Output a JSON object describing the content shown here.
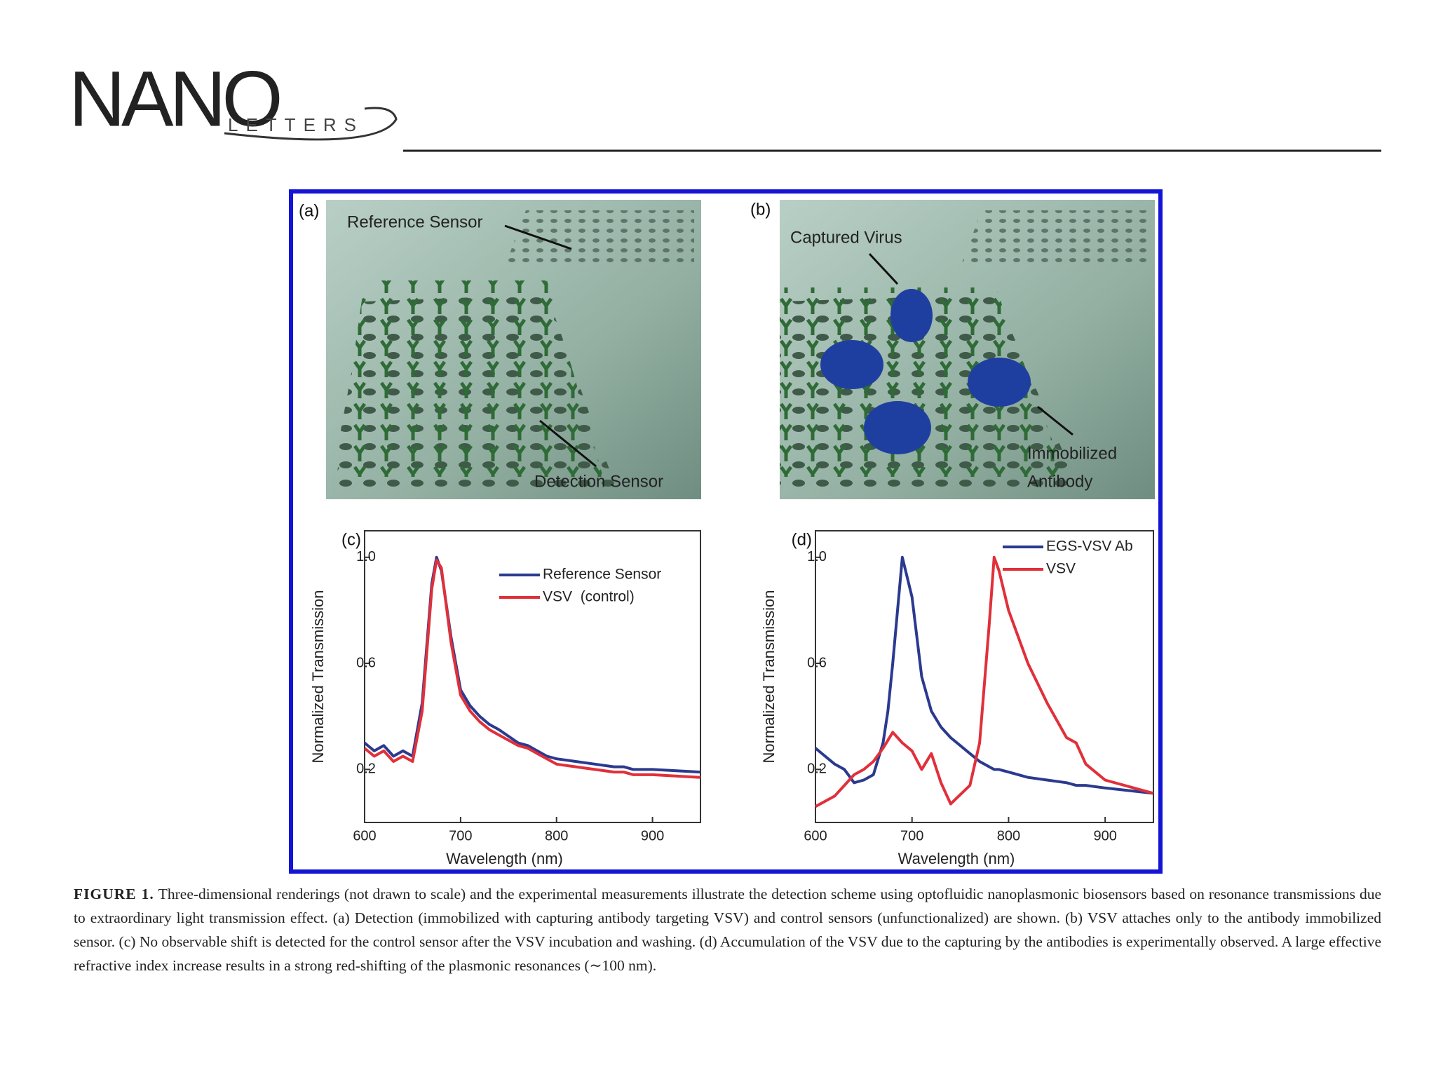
{
  "header": {
    "journal": "NANO",
    "journal_sub": "LETTERS"
  },
  "figure": {
    "panels": [
      {
        "letter": "(a)",
        "labels": [
          "Reference Sensor",
          "Detection Sensor"
        ]
      },
      {
        "letter": "(b)",
        "labels": [
          "Captured Virus",
          "Immobilized",
          "Antibody"
        ]
      }
    ]
  },
  "chart_data": [
    {
      "type": "line",
      "label": "(c)",
      "x_label": "Wavelength (nm)",
      "y_label": "Normalized Transmission",
      "x": [
        600,
        610,
        620,
        630,
        640,
        650,
        660,
        670,
        675,
        680,
        690,
        700,
        710,
        720,
        730,
        740,
        760,
        770,
        780,
        785,
        790,
        800,
        820,
        840,
        860,
        870,
        880,
        900,
        950
      ],
      "series": [
        {
          "name": "Reference Sensor",
          "color": "#2b3a8f",
          "values": [
            0.3,
            0.27,
            0.29,
            0.25,
            0.27,
            0.25,
            0.45,
            0.9,
            1.0,
            0.95,
            0.7,
            0.5,
            0.44,
            0.4,
            0.37,
            0.35,
            0.3,
            0.29,
            0.27,
            0.26,
            0.25,
            0.24,
            0.23,
            0.22,
            0.21,
            0.21,
            0.2,
            0.2,
            0.19
          ]
        },
        {
          "name": "VSV  (control)",
          "color": "#e0303a",
          "values": [
            0.28,
            0.25,
            0.27,
            0.23,
            0.25,
            0.23,
            0.42,
            0.88,
            0.99,
            0.96,
            0.68,
            0.48,
            0.42,
            0.38,
            0.35,
            0.33,
            0.29,
            0.28,
            0.26,
            0.25,
            0.24,
            0.22,
            0.21,
            0.2,
            0.19,
            0.19,
            0.18,
            0.18,
            0.17
          ]
        }
      ],
      "xlim": [
        600,
        950
      ],
      "ylim": [
        0,
        1.1
      ],
      "xticks": [
        600,
        700,
        800,
        900
      ],
      "yticks": [
        0.2,
        0.6,
        {
          "value": 1,
          "label": "1.0"
        }
      ]
    },
    {
      "type": "line",
      "label": "(d)",
      "x_label": "Wavelength (nm)",
      "y_label": "Normalized Transmission",
      "x": [
        600,
        610,
        620,
        630,
        640,
        650,
        660,
        670,
        675,
        680,
        690,
        700,
        710,
        720,
        730,
        740,
        760,
        770,
        780,
        785,
        790,
        800,
        820,
        840,
        860,
        870,
        880,
        900,
        950
      ],
      "series": [
        {
          "name": "EGS-VSV Ab",
          "color": "#2b3a8f",
          "values": [
            0.28,
            0.25,
            0.22,
            0.2,
            0.15,
            0.16,
            0.18,
            0.3,
            0.42,
            0.6,
            1.0,
            0.85,
            0.55,
            0.42,
            0.36,
            0.32,
            0.26,
            0.23,
            0.21,
            0.2,
            0.2,
            0.19,
            0.17,
            0.16,
            0.15,
            0.14,
            0.14,
            0.13,
            0.11
          ]
        },
        {
          "name": "VSV",
          "color": "#e0303a",
          "values": [
            0.06,
            0.08,
            0.1,
            0.14,
            0.18,
            0.2,
            0.23,
            0.28,
            0.31,
            0.34,
            0.3,
            0.27,
            0.2,
            0.26,
            0.15,
            0.07,
            0.14,
            0.3,
            0.75,
            1.0,
            0.95,
            0.8,
            0.6,
            0.45,
            0.32,
            0.3,
            0.22,
            0.16,
            0.11
          ]
        }
      ],
      "xlim": [
        600,
        950
      ],
      "ylim": [
        0,
        1.1
      ],
      "xticks": [
        600,
        700,
        800,
        900
      ],
      "yticks": [
        0.2,
        0.6,
        {
          "value": 1,
          "label": "1.0"
        }
      ]
    }
  ],
  "caption": {
    "label": "FIGURE 1.",
    "text": "Three-dimensional renderings (not drawn to scale) and the experimental measurements illustrate the detection scheme using optofluidic nanoplasmonic biosensors based on resonance transmissions due to extraordinary light transmission effect. (a) Detection (immobilized with capturing antibody targeting VSV) and control sensors (unfunctionalized) are shown. (b) VSV attaches only to the antibody immobilized sensor. (c) No observable shift is detected for the control sensor after the VSV incubation and washing. (d) Accumulation of the VSV due to the capturing by the antibodies is experimentally observed. A large effective refractive index increase results in a strong red-shifting of the plasmonic resonances (∼100 nm)."
  }
}
